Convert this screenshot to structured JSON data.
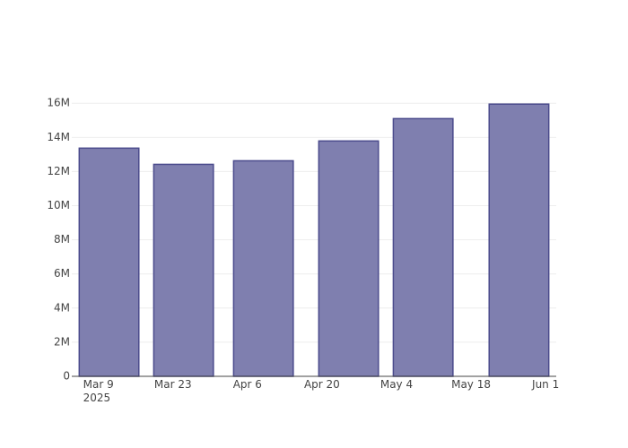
{
  "chart_data": {
    "type": "bar",
    "x": [
      "2025-03-11",
      "2025-03-25",
      "2025-04-09",
      "2025-04-25",
      "2025-05-09",
      "2025-05-27"
    ],
    "values": [
      13370000,
      12420000,
      12630000,
      13790000,
      15100000,
      15950000
    ],
    "color": "#7f7faf",
    "line_color": "#4b4b8c",
    "xlim": [
      "2025-03-04",
      "2025-06-03"
    ],
    "xticks": [
      {
        "value": "2025-03-09",
        "label": "Mar 9\n2025"
      },
      {
        "value": "2025-03-23",
        "label": "Mar 23"
      },
      {
        "value": "2025-04-06",
        "label": "Apr 6"
      },
      {
        "value": "2025-04-20",
        "label": "Apr 20"
      },
      {
        "value": "2025-05-04",
        "label": "May 4"
      },
      {
        "value": "2025-05-18",
        "label": "May 18"
      },
      {
        "value": "2025-06-01",
        "label": "Jun 1"
      }
    ],
    "ylim": [
      0,
      16800000
    ],
    "yticks": [
      0,
      {
        "value": 2000000,
        "label": "2M"
      },
      {
        "value": 4000000,
        "label": "4M"
      },
      {
        "value": 6000000,
        "label": "6M"
      },
      {
        "value": 8000000,
        "label": "8M"
      },
      {
        "value": 10000000,
        "label": "10M"
      },
      {
        "value": 12000000,
        "label": "12M"
      },
      {
        "value": 14000000,
        "label": "14M"
      },
      {
        "value": 16000000,
        "label": "16M"
      }
    ],
    "grid": true
  }
}
